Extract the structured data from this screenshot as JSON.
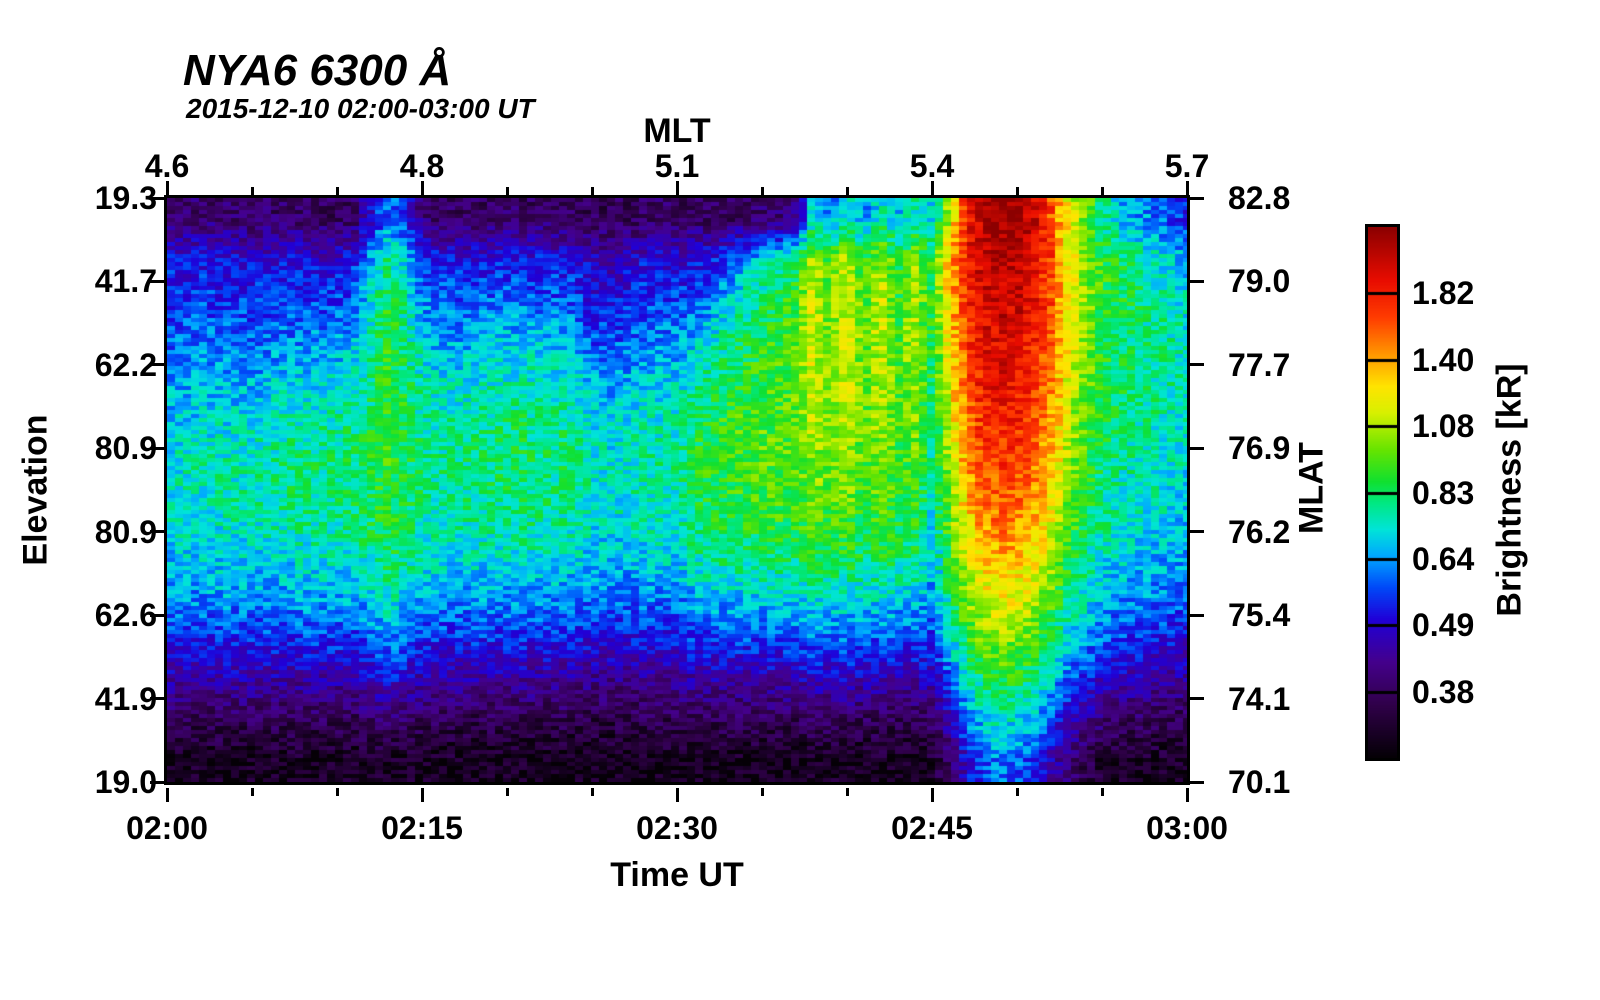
{
  "title": "NYA6 6300 Å",
  "subtitle": "2015-12-10 02:00-03:00 UT",
  "axes": {
    "top": {
      "label": "MLT",
      "ticks": [
        "4.6",
        "4.8",
        "5.1",
        "5.4",
        "5.7"
      ]
    },
    "bottom": {
      "label": "Time UT",
      "ticks": [
        "02:00",
        "02:15",
        "02:30",
        "02:45",
        "03:00"
      ]
    },
    "left": {
      "label": "Elevation",
      "ticks": [
        "19.3",
        "41.7",
        "62.2",
        "80.9",
        "80.9",
        "62.6",
        "41.9",
        "19.0"
      ]
    },
    "right": {
      "label": "MLAT",
      "ticks": [
        "82.8",
        "79.0",
        "77.7",
        "76.9",
        "76.2",
        "75.4",
        "74.1",
        "70.1"
      ]
    }
  },
  "colorbar": {
    "label": "Brightness [kR]",
    "tick_values": [
      "1.82",
      "1.40",
      "1.08",
      "0.83",
      "0.64",
      "0.49",
      "0.38"
    ],
    "stops": [
      [
        0.0,
        "#050006"
      ],
      [
        0.1,
        "#30004a"
      ],
      [
        0.18,
        "#44008c"
      ],
      [
        0.26,
        "#2000d8"
      ],
      [
        0.32,
        "#0048f8"
      ],
      [
        0.38,
        "#00a8ff"
      ],
      [
        0.43,
        "#00e4d8"
      ],
      [
        0.48,
        "#00e882"
      ],
      [
        0.52,
        "#10e030"
      ],
      [
        0.58,
        "#66e400"
      ],
      [
        0.65,
        "#d8f000"
      ],
      [
        0.7,
        "#ffe400"
      ],
      [
        0.76,
        "#ff9800"
      ],
      [
        0.83,
        "#ff3c00"
      ],
      [
        0.9,
        "#e80c00"
      ],
      [
        1.0,
        "#8c0000"
      ]
    ]
  },
  "chart_data": {
    "type": "heatmap",
    "title": "NYA6 6300 Å",
    "subtitle": "2015-12-10 02:00-03:00 UT",
    "x_axis": {
      "label": "Time UT",
      "start": "02:00",
      "end": "03:00",
      "minutes_per_column": 1,
      "major_tick_minutes": [
        0,
        15,
        30,
        45,
        60
      ],
      "minor_tick_minutes": [
        5,
        10,
        20,
        25,
        35,
        40,
        50,
        55
      ]
    },
    "x_axis_secondary": {
      "label": "MLT",
      "tick_values": [
        4.6,
        4.8,
        5.1,
        5.4,
        5.7
      ],
      "tick_at_minutes": [
        0,
        15,
        30,
        45,
        60
      ]
    },
    "y_axis_left": {
      "label": "Elevation",
      "tick_values": [
        19.3,
        41.7,
        62.2,
        80.9,
        80.9,
        62.6,
        41.9,
        19.0
      ]
    },
    "y_axis_right": {
      "label": "MLAT",
      "tick_values": [
        82.8,
        79.0,
        77.7,
        76.9,
        76.2,
        75.4,
        74.1,
        70.1
      ]
    },
    "colorbar": {
      "label": "Brightness [kR]",
      "tick_values": [
        1.82,
        1.4,
        1.08,
        0.83,
        0.64,
        0.49,
        0.38
      ],
      "scale": "log-spaced, ticks at 1/8..7/8 of bar height, black(min) to dark red(max)"
    },
    "value_units": "normalized brightness 0-100 mapped onto colorbar (0=black/min, 100=dark red/max)",
    "n_columns": 61,
    "n_rows": 14,
    "row_note": "row 0 = top of keogram (elev 19.3, MLAT 82.8), row 13 = bottom (elev 19.0, MLAT 70.1)",
    "grid": [
      [
        15,
        27,
        30,
        34,
        38,
        41,
        44,
        44,
        41,
        37,
        30,
        21,
        11,
        4
      ],
      [
        14,
        26,
        30,
        34,
        38,
        42,
        44,
        44,
        42,
        37,
        30,
        21,
        11,
        4
      ],
      [
        15,
        27,
        31,
        35,
        39,
        42,
        45,
        44,
        42,
        37,
        30,
        20,
        11,
        4
      ],
      [
        14,
        26,
        30,
        35,
        39,
        43,
        45,
        45,
        42,
        38,
        30,
        21,
        11,
        4
      ],
      [
        14,
        26,
        30,
        34,
        39,
        43,
        45,
        45,
        42,
        38,
        30,
        21,
        11,
        4
      ],
      [
        13,
        25,
        30,
        34,
        39,
        43,
        46,
        45,
        42,
        38,
        30,
        21,
        11,
        4
      ],
      [
        13,
        26,
        31,
        35,
        41,
        45,
        47,
        46,
        43,
        38,
        30,
        21,
        11,
        4
      ],
      [
        13,
        26,
        31,
        36,
        42,
        46,
        48,
        47,
        43,
        38,
        30,
        21,
        11,
        4
      ],
      [
        13,
        26,
        31,
        37,
        42,
        46,
        48,
        47,
        44,
        39,
        31,
        21,
        11,
        4
      ],
      [
        12,
        25,
        31,
        37,
        42,
        46,
        48,
        47,
        44,
        39,
        31,
        21,
        11,
        4
      ],
      [
        12,
        26,
        31,
        37,
        43,
        47,
        48,
        47,
        44,
        39,
        31,
        21,
        11,
        4
      ],
      [
        13,
        28,
        34,
        40,
        45,
        48,
        49,
        48,
        45,
        39,
        31,
        21,
        11,
        4
      ],
      [
        25,
        38,
        44,
        46,
        48,
        50,
        51,
        50,
        47,
        42,
        34,
        24,
        13,
        4
      ],
      [
        35,
        48,
        52,
        53,
        54,
        54,
        54,
        53,
        50,
        45,
        38,
        27,
        15,
        5
      ],
      [
        28,
        42,
        46,
        48,
        50,
        51,
        51,
        50,
        48,
        43,
        35,
        24,
        13,
        4
      ],
      [
        15,
        31,
        37,
        42,
        45,
        47,
        48,
        47,
        45,
        40,
        31,
        21,
        11,
        4
      ],
      [
        13,
        28,
        34,
        39,
        43,
        46,
        47,
        46,
        44,
        38,
        30,
        20,
        11,
        4
      ],
      [
        13,
        27,
        33,
        38,
        43,
        46,
        47,
        46,
        43,
        38,
        29,
        20,
        10,
        4
      ],
      [
        12,
        27,
        33,
        39,
        44,
        47,
        48,
        47,
        44,
        38,
        30,
        20,
        10,
        4
      ],
      [
        13,
        28,
        34,
        40,
        45,
        48,
        48,
        47,
        44,
        38,
        30,
        20,
        10,
        4
      ],
      [
        13,
        28,
        34,
        41,
        45,
        48,
        49,
        48,
        44,
        38,
        30,
        20,
        10,
        4
      ],
      [
        12,
        28,
        35,
        41,
        46,
        49,
        49,
        48,
        45,
        38,
        30,
        20,
        10,
        4
      ],
      [
        13,
        28,
        34,
        41,
        45,
        48,
        49,
        48,
        44,
        38,
        30,
        20,
        10,
        4
      ],
      [
        12,
        27,
        33,
        40,
        44,
        48,
        48,
        47,
        44,
        38,
        29,
        19,
        10,
        3
      ],
      [
        12,
        27,
        32,
        39,
        44,
        47,
        48,
        47,
        43,
        37,
        29,
        19,
        10,
        3
      ],
      [
        11,
        23,
        27,
        33,
        39,
        43,
        45,
        44,
        41,
        35,
        27,
        18,
        9,
        3
      ],
      [
        11,
        22,
        27,
        32,
        38,
        42,
        44,
        43,
        40,
        35,
        27,
        18,
        9,
        3
      ],
      [
        11,
        24,
        28,
        34,
        39,
        43,
        45,
        44,
        41,
        35,
        27,
        18,
        9,
        3
      ],
      [
        12,
        26,
        31,
        36,
        41,
        45,
        46,
        45,
        42,
        36,
        28,
        19,
        10,
        3
      ],
      [
        13,
        26,
        31,
        37,
        42,
        45,
        46,
        45,
        42,
        36,
        28,
        19,
        10,
        3
      ],
      [
        12,
        25,
        31,
        37,
        42,
        45,
        47,
        45,
        42,
        36,
        28,
        19,
        10,
        3
      ],
      [
        12,
        26,
        33,
        40,
        46,
        50,
        52,
        50,
        46,
        40,
        31,
        21,
        11,
        3
      ],
      [
        12,
        28,
        37,
        44,
        49,
        52,
        53,
        51,
        48,
        41,
        31,
        21,
        11,
        3
      ],
      [
        12,
        32,
        41,
        47,
        51,
        54,
        54,
        52,
        49,
        41,
        32,
        21,
        11,
        3
      ],
      [
        13,
        38,
        46,
        50,
        53,
        55,
        55,
        53,
        49,
        42,
        32,
        21,
        11,
        3
      ],
      [
        14,
        42,
        49,
        52,
        54,
        56,
        56,
        54,
        49,
        42,
        32,
        21,
        11,
        3
      ],
      [
        15,
        46,
        52,
        54,
        55,
        56,
        56,
        54,
        50,
        43,
        32,
        22,
        11,
        3
      ],
      [
        17,
        50,
        55,
        57,
        57,
        57,
        56,
        54,
        50,
        43,
        33,
        22,
        11,
        3
      ],
      [
        45,
        64,
        66,
        66,
        65,
        63,
        60,
        57,
        52,
        45,
        35,
        24,
        12,
        4
      ],
      [
        34,
        54,
        57,
        58,
        58,
        58,
        57,
        55,
        51,
        44,
        34,
        23,
        12,
        4
      ],
      [
        48,
        65,
        67,
        67,
        65,
        63,
        61,
        57,
        52,
        45,
        35,
        24,
        12,
        4
      ],
      [
        36,
        52,
        55,
        56,
        56,
        56,
        55,
        53,
        50,
        43,
        33,
        22,
        11,
        3
      ],
      [
        45,
        63,
        65,
        65,
        64,
        62,
        59,
        56,
        51,
        44,
        34,
        23,
        12,
        4
      ],
      [
        40,
        52,
        54,
        55,
        55,
        55,
        54,
        52,
        49,
        42,
        32,
        22,
        11,
        3
      ],
      [
        45,
        60,
        62,
        62,
        60,
        58,
        56,
        53,
        49,
        42,
        32,
        22,
        11,
        3
      ],
      [
        42,
        52,
        52,
        51,
        50,
        48,
        46,
        44,
        41,
        37,
        31,
        23,
        14,
        6
      ],
      [
        62,
        72,
        71,
        69,
        67,
        64,
        61,
        58,
        53,
        48,
        41,
        32,
        22,
        12
      ],
      [
        88,
        87,
        85,
        83,
        81,
        78,
        75,
        71,
        66,
        60,
        53,
        44,
        34,
        25
      ],
      [
        96,
        94,
        92,
        90,
        88,
        85,
        82,
        78,
        72,
        66,
        59,
        50,
        42,
        33
      ],
      [
        100,
        96,
        94,
        92,
        90,
        87,
        84,
        80,
        75,
        68,
        61,
        53,
        44,
        35
      ],
      [
        99,
        95,
        93,
        91,
        89,
        86,
        83,
        79,
        74,
        67,
        60,
        52,
        43,
        34
      ],
      [
        93,
        91,
        89,
        87,
        85,
        82,
        79,
        75,
        70,
        64,
        57,
        48,
        39,
        30
      ],
      [
        82,
        83,
        82,
        80,
        78,
        75,
        72,
        68,
        63,
        57,
        50,
        41,
        32,
        22
      ],
      [
        68,
        70,
        69,
        68,
        66,
        64,
        61,
        58,
        54,
        49,
        43,
        34,
        25,
        15
      ],
      [
        58,
        60,
        60,
        59,
        58,
        56,
        54,
        52,
        48,
        44,
        38,
        29,
        19,
        9
      ],
      [
        48,
        54,
        54,
        53,
        52,
        51,
        49,
        47,
        44,
        40,
        34,
        25,
        15,
        6
      ],
      [
        40,
        50,
        51,
        50,
        50,
        49,
        47,
        45,
        42,
        38,
        31,
        23,
        13,
        5
      ],
      [
        38,
        47,
        49,
        48,
        48,
        47,
        46,
        44,
        41,
        37,
        30,
        22,
        12,
        5
      ],
      [
        36,
        44,
        47,
        47,
        47,
        46,
        45,
        43,
        40,
        36,
        29,
        21,
        12,
        4
      ],
      [
        32,
        42,
        45,
        46,
        46,
        45,
        44,
        42,
        39,
        35,
        28,
        20,
        11,
        4
      ],
      [
        28,
        40,
        43,
        44,
        45,
        44,
        43,
        41,
        38,
        34,
        27,
        19,
        10,
        4
      ]
    ]
  }
}
